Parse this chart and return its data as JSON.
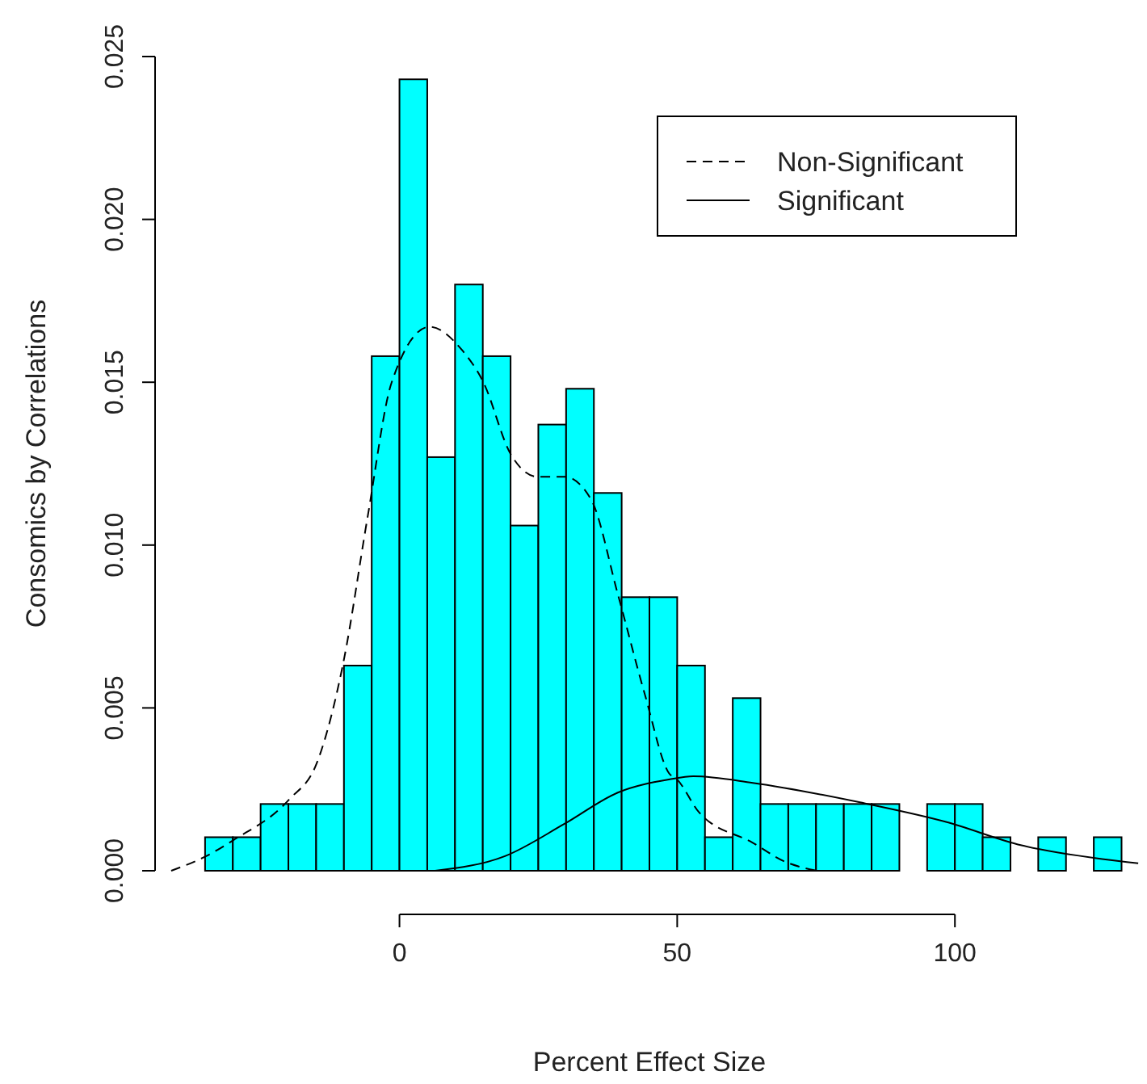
{
  "chart_data": {
    "type": "histogram",
    "xlabel": "Percent Effect Size",
    "ylabel": "Consomics by Correlations",
    "bins": [
      -35,
      -30,
      -25,
      -20,
      -15,
      -10,
      -5,
      0,
      5,
      10,
      15,
      20,
      25,
      30,
      35,
      40,
      45,
      50,
      55,
      60,
      65,
      70,
      75,
      80,
      85,
      90,
      95,
      100,
      105,
      110,
      115,
      120,
      125,
      130
    ],
    "values": [
      0.00103,
      0.00103,
      0.00205,
      0.00205,
      0.00205,
      0.0063,
      0.0158,
      0.0243,
      0.0127,
      0.018,
      0.0158,
      0.0106,
      0.0137,
      0.0148,
      0.0116,
      0.0084,
      0.0084,
      0.0063,
      0.00103,
      0.0053,
      0.00205,
      0.00205,
      0.00205,
      0.00205,
      0.00205,
      0,
      0.00205,
      0.00205,
      0.00103,
      0,
      0.00103,
      0,
      0.00103
    ],
    "color": "#00ffff",
    "series": [
      {
        "type": "line",
        "name": "Non-Significant",
        "color": "#000000",
        "line_style": "dashed",
        "x": [
          -41.1,
          -34.8,
          -29.9,
          -19.8,
          -14.9,
          -10.1,
          -5.7,
          -1.4,
          5.4,
          11.2,
          15.1,
          20,
          24.8,
          29.7,
          34.5,
          39.3,
          44.2,
          48.5,
          50,
          53.9,
          63.6,
          69.4,
          75.2
        ],
        "values": [
          0,
          0.00045,
          0.00094,
          0.0022,
          0.0033,
          0.0064,
          0.0109,
          0.015,
          0.0167,
          0.016,
          0.015,
          0.0128,
          0.0121,
          0.0121,
          0.0114,
          0.0085,
          0.0054,
          0.003,
          0.0028,
          0.0018,
          0.00086,
          0.00028,
          0
        ]
      },
      {
        "type": "line",
        "name": "Significant",
        "color": "#000000",
        "line_style": "solid",
        "x": [
          6.4,
          19,
          29.7,
          39.3,
          48.5,
          52.9,
          63.6,
          82.9,
          98.4,
          112,
          126.5,
          133
        ],
        "values": [
          0,
          0.00045,
          0.00144,
          0.0024,
          0.0028,
          0.0029,
          0.0027,
          0.0021,
          0.0015,
          0.00078,
          0.00036,
          0.00023
        ]
      }
    ],
    "xlim": [
      -44,
      134
    ],
    "ylim": [
      0,
      0.025
    ],
    "xticks": [
      0,
      50,
      100
    ],
    "yticks": [
      {
        "value": 0,
        "label": "0.000"
      },
      {
        "value": 0.005,
        "label": "0.005"
      },
      {
        "value": 0.01,
        "label": "0.010"
      },
      {
        "value": 0.015,
        "label": "0.015"
      },
      {
        "value": 0.02,
        "label": "0.020"
      },
      {
        "value": 0.025,
        "label": "0.025"
      }
    ],
    "legend": "top right",
    "grid": false
  }
}
